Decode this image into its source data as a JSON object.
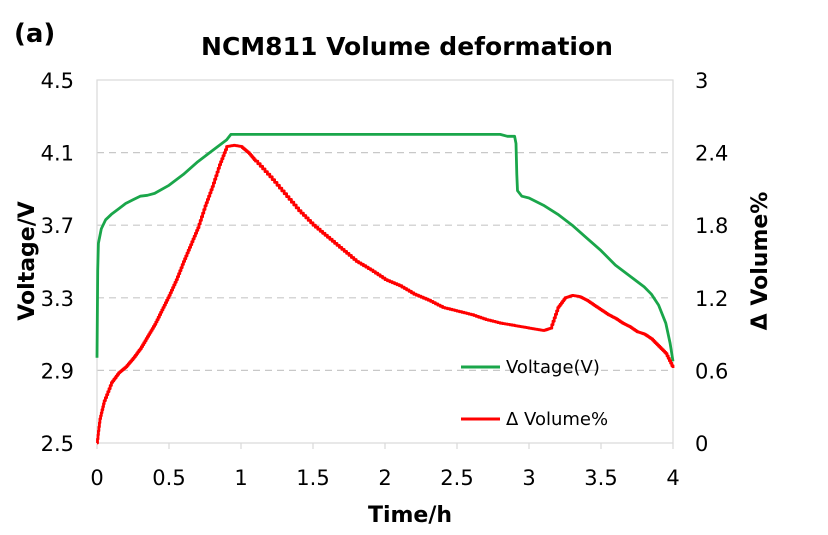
{
  "panel_label": "(a)",
  "chart_data": {
    "type": "line",
    "title": "NCM811 Volume deformation",
    "xlabel": "Time/h",
    "ylabel_left": "Voltage/V",
    "ylabel_right": "Δ Volume%",
    "xlim": [
      0,
      4
    ],
    "ylim_left": [
      2.5,
      4.5
    ],
    "ylim_right": [
      0,
      3
    ],
    "x_ticks": [
      "0",
      "0.5",
      "1",
      "1.5",
      "2",
      "2.5",
      "3",
      "3.5",
      "4"
    ],
    "y_left_ticks": [
      "2.5",
      "2.9",
      "3.3",
      "3.7",
      "4.1",
      "4.5"
    ],
    "y_right_ticks": [
      "0",
      "0.6",
      "1.2",
      "1.8",
      "2.4",
      "3"
    ],
    "gridlines": "horizontal dashed",
    "legend_position": "lower-right",
    "series": [
      {
        "name": "Voltage(V)",
        "axis": "left",
        "color": "#1aa64a",
        "x": [
          0,
          0.005,
          0.01,
          0.03,
          0.06,
          0.1,
          0.15,
          0.2,
          0.25,
          0.3,
          0.35,
          0.4,
          0.5,
          0.6,
          0.7,
          0.8,
          0.9,
          0.93,
          1.0,
          1.5,
          2.0,
          2.5,
          2.8,
          2.85,
          2.9,
          2.91,
          2.915,
          2.92,
          2.95,
          3.0,
          3.1,
          3.2,
          3.3,
          3.4,
          3.5,
          3.6,
          3.7,
          3.8,
          3.85,
          3.9,
          3.95,
          3.98,
          4.0
        ],
        "values": [
          2.97,
          3.45,
          3.6,
          3.68,
          3.73,
          3.76,
          3.79,
          3.82,
          3.84,
          3.86,
          3.865,
          3.875,
          3.92,
          3.98,
          4.05,
          4.11,
          4.17,
          4.2,
          4.2,
          4.2,
          4.2,
          4.2,
          4.2,
          4.19,
          4.19,
          4.15,
          3.98,
          3.89,
          3.86,
          3.85,
          3.81,
          3.76,
          3.7,
          3.63,
          3.56,
          3.48,
          3.42,
          3.36,
          3.32,
          3.26,
          3.16,
          3.05,
          2.95
        ]
      },
      {
        "name": "Δ Volume%",
        "axis": "right",
        "color": "#ff0000",
        "x": [
          0,
          0.02,
          0.05,
          0.1,
          0.15,
          0.2,
          0.25,
          0.3,
          0.35,
          0.4,
          0.45,
          0.5,
          0.55,
          0.6,
          0.65,
          0.7,
          0.75,
          0.8,
          0.85,
          0.9,
          0.95,
          1.0,
          1.05,
          1.1,
          1.2,
          1.3,
          1.4,
          1.5,
          1.6,
          1.7,
          1.8,
          1.9,
          2.0,
          2.1,
          2.2,
          2.3,
          2.4,
          2.5,
          2.6,
          2.7,
          2.8,
          2.9,
          2.95,
          3.0,
          3.05,
          3.1,
          3.15,
          3.2,
          3.25,
          3.3,
          3.35,
          3.4,
          3.45,
          3.5,
          3.55,
          3.6,
          3.65,
          3.7,
          3.75,
          3.8,
          3.85,
          3.9,
          3.95,
          4.0
        ],
        "values": [
          0,
          0.2,
          0.35,
          0.5,
          0.58,
          0.63,
          0.7,
          0.78,
          0.88,
          0.98,
          1.1,
          1.22,
          1.35,
          1.5,
          1.64,
          1.78,
          1.96,
          2.12,
          2.3,
          2.45,
          2.46,
          2.45,
          2.4,
          2.33,
          2.2,
          2.06,
          1.92,
          1.8,
          1.7,
          1.6,
          1.5,
          1.43,
          1.35,
          1.3,
          1.23,
          1.18,
          1.12,
          1.09,
          1.06,
          1.02,
          0.99,
          0.97,
          0.96,
          0.95,
          0.94,
          0.93,
          0.95,
          1.12,
          1.2,
          1.22,
          1.21,
          1.18,
          1.14,
          1.1,
          1.06,
          1.03,
          0.99,
          0.96,
          0.92,
          0.9,
          0.86,
          0.8,
          0.74,
          0.62
        ]
      }
    ]
  }
}
